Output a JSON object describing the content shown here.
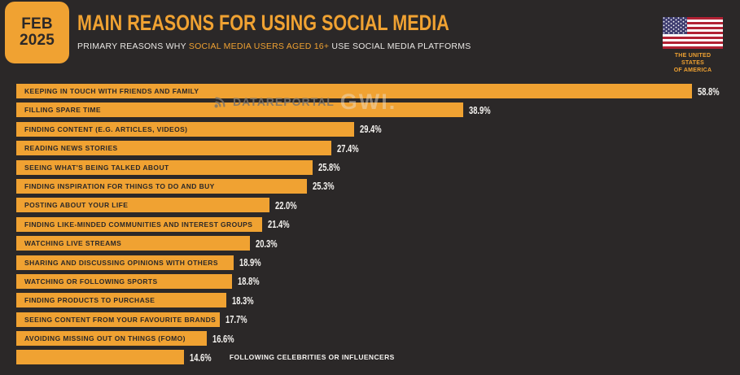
{
  "header": {
    "date_badge": {
      "month": "FEB",
      "year": "2025"
    },
    "title": "MAIN REASONS FOR USING SOCIAL MEDIA",
    "subtitle_prefix": "PRIMARY REASONS WHY ",
    "subtitle_highlight": "SOCIAL MEDIA USERS AGED 16+",
    "subtitle_suffix": " USE SOCIAL MEDIA PLATFORMS",
    "flag_caption_line1": "THE UNITED STATES",
    "flag_caption_line2": "OF AMERICA"
  },
  "watermark": {
    "brand1": "DATAREPORTAL",
    "brand2": "GWI."
  },
  "colors": {
    "accent": "#F0A232",
    "background": "#2B2828",
    "bar_label_text": "#2B2828",
    "value_text": "#F5F3F0",
    "flag_red": "#B22234",
    "flag_blue": "#3C3B6E"
  },
  "chart_data": {
    "type": "bar",
    "orientation": "horizontal",
    "unit": "%",
    "xlim": [
      0,
      60
    ],
    "grid": false,
    "legend": false,
    "categories": [
      "KEEPING IN TOUCH WITH FRIENDS AND FAMILY",
      "FILLING SPARE TIME",
      "FINDING CONTENT (E.G. ARTICLES, VIDEOS)",
      "READING NEWS STORIES",
      "SEEING WHAT'S BEING TALKED ABOUT",
      "FINDING INSPIRATION FOR THINGS TO DO AND BUY",
      "POSTING ABOUT YOUR LIFE",
      "FINDING LIKE-MINDED COMMUNITIES AND INTEREST GROUPS",
      "WATCHING LIVE STREAMS",
      "SHARING AND DISCUSSING OPINIONS WITH OTHERS",
      "WATCHING OR FOLLOWING SPORTS",
      "FINDING PRODUCTS TO PURCHASE",
      "SEEING CONTENT FROM YOUR FAVOURITE BRANDS",
      "AVOIDING MISSING OUT ON THINGS (FOMO)",
      "FOLLOWING CELEBRITIES OR INFLUENCERS"
    ],
    "values": [
      58.8,
      38.9,
      29.4,
      27.4,
      25.8,
      25.3,
      22.0,
      21.4,
      20.3,
      18.9,
      18.8,
      18.3,
      17.7,
      16.6,
      14.6
    ],
    "value_labels": [
      "58.8%",
      "38.9%",
      "29.4%",
      "27.4%",
      "25.8%",
      "25.3%",
      "22.0%",
      "21.4%",
      "20.3%",
      "18.9%",
      "18.8%",
      "18.3%",
      "17.7%",
      "16.6%",
      "14.6%"
    ],
    "outside_label_indices": [
      14
    ]
  }
}
